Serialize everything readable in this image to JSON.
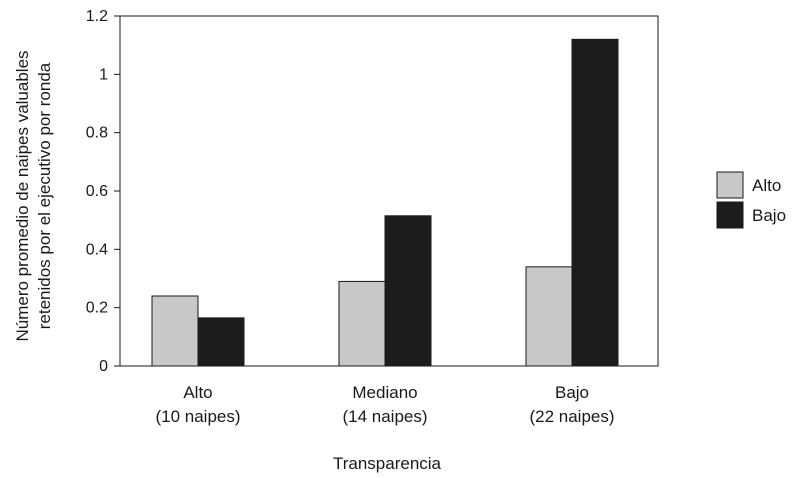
{
  "chart_data": {
    "type": "bar",
    "title": "",
    "xlabel": "Transparencia",
    "ylabel_lines": [
      "Número promedio de naipes valuables",
      "retenidos por el ejecutivo por ronda"
    ],
    "categories": [
      {
        "line1": "Alto",
        "line2": "(10 naipes)"
      },
      {
        "line1": "Mediano",
        "line2": "(14 naipes)"
      },
      {
        "line1": "Bajo",
        "line2": "(22 naipes)"
      }
    ],
    "series": [
      {
        "name": "Alto",
        "color": "#c8c8c8",
        "values": [
          0.24,
          0.29,
          0.34
        ]
      },
      {
        "name": "Bajo",
        "color": "#1c1c1c",
        "values": [
          0.165,
          0.515,
          1.12
        ]
      }
    ],
    "y_ticks": [
      "0",
      "0.2",
      "0.4",
      "0.6",
      "0.8",
      "1",
      "1.2"
    ],
    "ylim": [
      0,
      1.2
    ],
    "grid": false,
    "legend_position": "right"
  }
}
